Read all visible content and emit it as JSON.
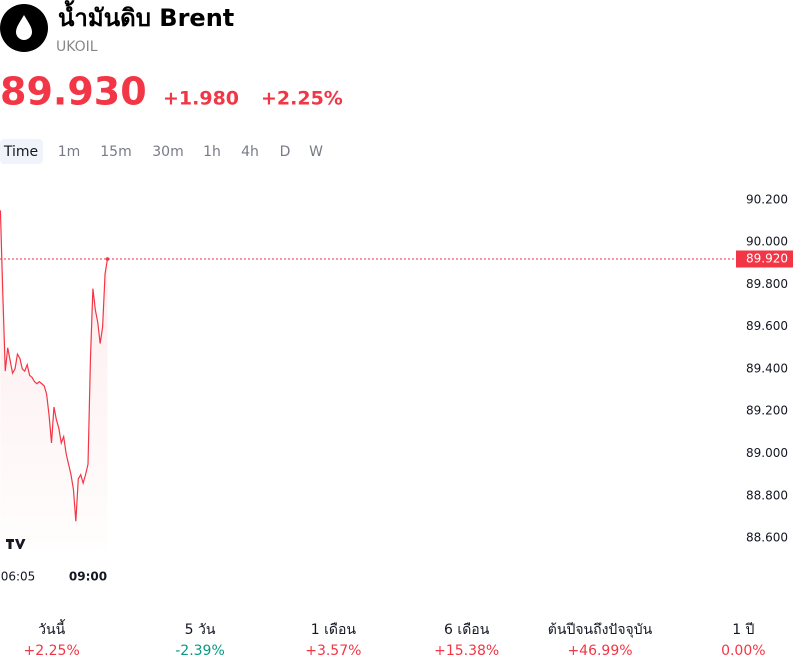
{
  "header": {
    "name": "น้ำมันดิบ Brent",
    "symbol": "UKOIL",
    "price": "89.930",
    "change": "+1.980",
    "change_pct": "+2.25%"
  },
  "timeframes": [
    "Time",
    "1m",
    "15m",
    "30m",
    "1h",
    "4h",
    "D",
    "W"
  ],
  "chart_data": {
    "type": "line",
    "x": [
      "05:24",
      "05:30",
      "05:36",
      "05:42",
      "05:48",
      "05:54",
      "06:00",
      "06:06",
      "06:12",
      "06:18",
      "06:24",
      "06:30",
      "06:36",
      "06:42",
      "06:48",
      "06:54",
      "07:00",
      "07:06",
      "07:12",
      "07:18",
      "07:24",
      "07:30",
      "07:36",
      "07:42",
      "07:48",
      "07:54",
      "08:00",
      "08:06",
      "08:12",
      "08:18",
      "08:24",
      "08:30",
      "08:36",
      "08:42",
      "08:48",
      "08:54",
      "09:00",
      "09:06",
      "09:12",
      "09:18",
      "09:24",
      "09:30",
      "09:36",
      "09:42",
      "09:48"
    ],
    "series": [
      {
        "color": "#f23645",
        "values": [
          90.15,
          89.75,
          89.39,
          89.5,
          89.44,
          89.38,
          89.4,
          89.47,
          89.45,
          89.4,
          89.39,
          89.42,
          89.37,
          89.36,
          89.34,
          89.33,
          89.34,
          89.33,
          89.32,
          89.28,
          89.18,
          89.05,
          89.22,
          89.16,
          89.12,
          89.05,
          89.08,
          89.0,
          88.95,
          88.9,
          88.83,
          88.68,
          88.88,
          88.9,
          88.86,
          88.9,
          88.95,
          89.45,
          89.78,
          89.68,
          89.62,
          89.52,
          89.6,
          89.85,
          89.92
        ]
      }
    ],
    "xlim": [
      "05:23",
      "35:35"
    ],
    "xticks": [
      "06:05",
      "09:00"
    ],
    "ylim": [
      88.52,
      90.27
    ],
    "yticks": [
      {
        "value": 88.6,
        "label": "88.600"
      },
      {
        "value": 88.8,
        "label": "88.800"
      },
      {
        "value": 89.0,
        "label": "89.000"
      },
      {
        "value": 89.2,
        "label": "89.200"
      },
      {
        "value": 89.4,
        "label": "89.400"
      },
      {
        "value": 89.6,
        "label": "89.600"
      },
      {
        "value": 89.8,
        "label": "89.800"
      },
      {
        "value": 90.0,
        "label": "90.000"
      },
      {
        "value": 90.2,
        "label": "90.200"
      }
    ],
    "last_price": {
      "value": 89.92,
      "label": "89.920"
    }
  },
  "performance": {
    "up_color": "#f23645",
    "down_color": "#089981",
    "items": [
      {
        "label": "วันนี้",
        "value": "+2.25%"
      },
      {
        "label": "5 วัน",
        "value": "-2.39%"
      },
      {
        "label": "1 เดือน",
        "value": "+3.57%"
      },
      {
        "label": "6 เดือน",
        "value": "+15.38%"
      },
      {
        "label": "ต้นปีจนถึงปัจจุบัน",
        "value": "+46.99%"
      },
      {
        "label": "1 ปี",
        "value": "0.00%"
      }
    ]
  }
}
